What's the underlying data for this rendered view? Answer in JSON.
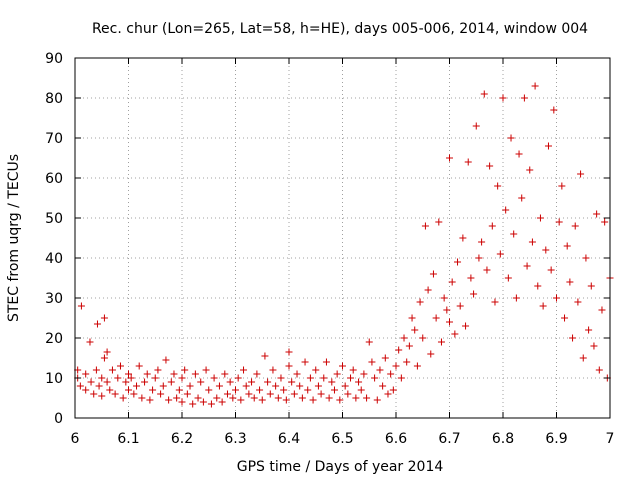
{
  "chart_data": {
    "type": "scatter",
    "title": "Rec. chur (Lon=265, Lat=58, h=HE), days 005-006, 2014, window 004",
    "xlabel": "GPS time / Days of year 2014",
    "ylabel": "STEC from uqrg / TECUs",
    "xlim": [
      6,
      7
    ],
    "ylim": [
      0,
      90
    ],
    "x_ticks": [
      6,
      6.1,
      6.2,
      6.3,
      6.4,
      6.5,
      6.6,
      6.7,
      6.8,
      6.9,
      7
    ],
    "x_tick_labels": [
      "6",
      "6.1",
      "6.2",
      "6.3",
      "6.4",
      "6.5",
      "6.6",
      "6.7",
      "6.8",
      "6.9",
      "7"
    ],
    "y_ticks": [
      0,
      10,
      20,
      30,
      40,
      50,
      60,
      70,
      80,
      90
    ],
    "y_tick_labels": [
      "0",
      "10",
      "20",
      "30",
      "40",
      "50",
      "60",
      "70",
      "80",
      "90"
    ],
    "grid": true,
    "marker": "+",
    "colors": {
      "points": "#cc0000",
      "grid": "#a0a0a0",
      "axes": "#000000"
    },
    "series": [
      {
        "name": "STEC",
        "points": [
          [
            6.012,
            28
          ],
          [
            6.028,
            19
          ],
          [
            6.042,
            23.5
          ],
          [
            6.055,
            25
          ],
          [
            6.005,
            12
          ],
          [
            6.005,
            10
          ],
          [
            6.01,
            8
          ],
          [
            6.02,
            11
          ],
          [
            6.02,
            7
          ],
          [
            6.03,
            9
          ],
          [
            6.035,
            6
          ],
          [
            6.04,
            12
          ],
          [
            6.045,
            8
          ],
          [
            6.05,
            10
          ],
          [
            6.05,
            5.5
          ],
          [
            6.055,
            15
          ],
          [
            6.06,
            9
          ],
          [
            6.06,
            16.5
          ],
          [
            6.065,
            7
          ],
          [
            6.07,
            12
          ],
          [
            6.075,
            6
          ],
          [
            6.08,
            10
          ],
          [
            6.085,
            13
          ],
          [
            6.09,
            5
          ],
          [
            6.095,
            9
          ],
          [
            6.1,
            7
          ],
          [
            6.1,
            11
          ],
          [
            6.105,
            10
          ],
          [
            6.11,
            6
          ],
          [
            6.115,
            8
          ],
          [
            6.12,
            13
          ],
          [
            6.125,
            5
          ],
          [
            6.13,
            9
          ],
          [
            6.135,
            11
          ],
          [
            6.14,
            4.5
          ],
          [
            6.145,
            7
          ],
          [
            6.15,
            10
          ],
          [
            6.155,
            12
          ],
          [
            6.16,
            6
          ],
          [
            6.165,
            8
          ],
          [
            6.17,
            14.5
          ],
          [
            6.175,
            4.5
          ],
          [
            6.18,
            9
          ],
          [
            6.185,
            11
          ],
          [
            6.19,
            5
          ],
          [
            6.195,
            7
          ],
          [
            6.2,
            10
          ],
          [
            6.2,
            4
          ],
          [
            6.205,
            12
          ],
          [
            6.21,
            6
          ],
          [
            6.215,
            8
          ],
          [
            6.22,
            3.5
          ],
          [
            6.225,
            11
          ],
          [
            6.23,
            5
          ],
          [
            6.235,
            9
          ],
          [
            6.24,
            4
          ],
          [
            6.245,
            12
          ],
          [
            6.25,
            7
          ],
          [
            6.255,
            3.5
          ],
          [
            6.26,
            10
          ],
          [
            6.265,
            5
          ],
          [
            6.27,
            8
          ],
          [
            6.275,
            4
          ],
          [
            6.28,
            11
          ],
          [
            6.285,
            6
          ],
          [
            6.29,
            9
          ],
          [
            6.295,
            5
          ],
          [
            6.3,
            7
          ],
          [
            6.305,
            10
          ],
          [
            6.31,
            4.5
          ],
          [
            6.315,
            12
          ],
          [
            6.32,
            8
          ],
          [
            6.325,
            6
          ],
          [
            6.33,
            9
          ],
          [
            6.335,
            5
          ],
          [
            6.34,
            11
          ],
          [
            6.345,
            7
          ],
          [
            6.35,
            4.5
          ],
          [
            6.355,
            15.5
          ],
          [
            6.36,
            9
          ],
          [
            6.365,
            6
          ],
          [
            6.37,
            12
          ],
          [
            6.375,
            8
          ],
          [
            6.38,
            5
          ],
          [
            6.385,
            10
          ],
          [
            6.39,
            7
          ],
          [
            6.395,
            4.5
          ],
          [
            6.4,
            13
          ],
          [
            6.4,
            16.5
          ],
          [
            6.405,
            9
          ],
          [
            6.41,
            6
          ],
          [
            6.415,
            11
          ],
          [
            6.42,
            8
          ],
          [
            6.425,
            5
          ],
          [
            6.43,
            14
          ],
          [
            6.435,
            7
          ],
          [
            6.44,
            10
          ],
          [
            6.445,
            4.5
          ],
          [
            6.45,
            12
          ],
          [
            6.455,
            8
          ],
          [
            6.46,
            6
          ],
          [
            6.465,
            10
          ],
          [
            6.47,
            14
          ],
          [
            6.475,
            5
          ],
          [
            6.48,
            9
          ],
          [
            6.485,
            7
          ],
          [
            6.49,
            11
          ],
          [
            6.495,
            4.5
          ],
          [
            6.5,
            13
          ],
          [
            6.505,
            8
          ],
          [
            6.51,
            6
          ],
          [
            6.515,
            10
          ],
          [
            6.52,
            12
          ],
          [
            6.525,
            5
          ],
          [
            6.53,
            9
          ],
          [
            6.535,
            7
          ],
          [
            6.54,
            11
          ],
          [
            6.545,
            5
          ],
          [
            6.55,
            19
          ],
          [
            6.555,
            14
          ],
          [
            6.56,
            10
          ],
          [
            6.565,
            4.5
          ],
          [
            6.57,
            12
          ],
          [
            6.575,
            8
          ],
          [
            6.58,
            15
          ],
          [
            6.585,
            6
          ],
          [
            6.59,
            11
          ],
          [
            6.595,
            7
          ],
          [
            6.6,
            13
          ],
          [
            6.605,
            17
          ],
          [
            6.61,
            10
          ],
          [
            6.615,
            20
          ],
          [
            6.62,
            14
          ],
          [
            6.625,
            18
          ],
          [
            6.63,
            25
          ],
          [
            6.635,
            22
          ],
          [
            6.64,
            13
          ],
          [
            6.645,
            29
          ],
          [
            6.65,
            20
          ],
          [
            6.655,
            48
          ],
          [
            6.66,
            32
          ],
          [
            6.665,
            16
          ],
          [
            6.67,
            36
          ],
          [
            6.675,
            25
          ],
          [
            6.68,
            49
          ],
          [
            6.685,
            19
          ],
          [
            6.69,
            30
          ],
          [
            6.695,
            27
          ],
          [
            6.7,
            65
          ],
          [
            6.7,
            24
          ],
          [
            6.705,
            34
          ],
          [
            6.71,
            21
          ],
          [
            6.715,
            39
          ],
          [
            6.72,
            28
          ],
          [
            6.725,
            45
          ],
          [
            6.73,
            23
          ],
          [
            6.735,
            64
          ],
          [
            6.74,
            35
          ],
          [
            6.745,
            31
          ],
          [
            6.75,
            73
          ],
          [
            6.755,
            40
          ],
          [
            6.76,
            44
          ],
          [
            6.765,
            81
          ],
          [
            6.77,
            37
          ],
          [
            6.775,
            63
          ],
          [
            6.78,
            48
          ],
          [
            6.785,
            29
          ],
          [
            6.79,
            58
          ],
          [
            6.795,
            41
          ],
          [
            6.8,
            80
          ],
          [
            6.805,
            52
          ],
          [
            6.81,
            35
          ],
          [
            6.815,
            70
          ],
          [
            6.82,
            46
          ],
          [
            6.825,
            30
          ],
          [
            6.83,
            66
          ],
          [
            6.835,
            55
          ],
          [
            6.84,
            80
          ],
          [
            6.845,
            38
          ],
          [
            6.85,
            62
          ],
          [
            6.855,
            44
          ],
          [
            6.86,
            83
          ],
          [
            6.865,
            33
          ],
          [
            6.87,
            50
          ],
          [
            6.875,
            28
          ],
          [
            6.88,
            42
          ],
          [
            6.885,
            68
          ],
          [
            6.89,
            37
          ],
          [
            6.895,
            77
          ],
          [
            6.9,
            30
          ],
          [
            6.905,
            49
          ],
          [
            6.91,
            58
          ],
          [
            6.915,
            25
          ],
          [
            6.92,
            43
          ],
          [
            6.925,
            34
          ],
          [
            6.93,
            20
          ],
          [
            6.935,
            48
          ],
          [
            6.94,
            29
          ],
          [
            6.945,
            61
          ],
          [
            6.95,
            15
          ],
          [
            6.955,
            40
          ],
          [
            6.96,
            22
          ],
          [
            6.965,
            33
          ],
          [
            6.97,
            18
          ],
          [
            6.975,
            51
          ],
          [
            6.98,
            12
          ],
          [
            6.985,
            27
          ],
          [
            6.99,
            49
          ],
          [
            6.995,
            10
          ],
          [
            7.0,
            35
          ]
        ]
      }
    ]
  }
}
